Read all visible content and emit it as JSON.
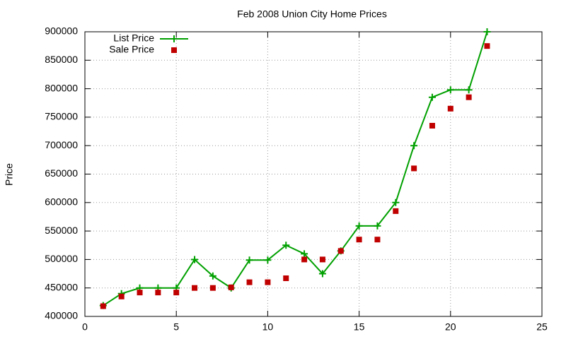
{
  "chart_data": {
    "type": "line",
    "title": "Feb 2008 Union City Home Prices",
    "ylabel": "Price",
    "x": [
      1,
      2,
      3,
      4,
      5,
      6,
      7,
      8,
      9,
      10,
      11,
      12,
      13,
      14,
      15,
      16,
      17,
      18,
      19,
      20,
      21,
      22
    ],
    "series": [
      {
        "name": "List Price",
        "color": "#00a000",
        "style": "linespoints",
        "values": [
          419000,
          440000,
          449900,
          450000,
          450000,
          499900,
          471000,
          450000,
          499000,
          499000,
          525000,
          510000,
          475000,
          515000,
          559000,
          559000,
          600000,
          700000,
          785000,
          798000,
          798000,
          900000
        ]
      },
      {
        "name": "Sale Price",
        "color": "#c00000",
        "style": "points",
        "values": [
          418000,
          435000,
          442000,
          442000,
          442000,
          450000,
          450000,
          451000,
          460000,
          460000,
          467000,
          500000,
          500000,
          515000,
          535000,
          535000,
          585000,
          660000,
          735000,
          765000,
          785000,
          875000
        ]
      }
    ],
    "xlim": [
      0,
      25
    ],
    "xticks": [
      0,
      5,
      10,
      15,
      20,
      25
    ],
    "ylim": [
      400000,
      900000
    ],
    "yticks": [
      400000,
      450000,
      500000,
      550000,
      600000,
      650000,
      700000,
      750000,
      800000,
      850000,
      900000
    ],
    "grid": true,
    "legend": "top-left"
  }
}
